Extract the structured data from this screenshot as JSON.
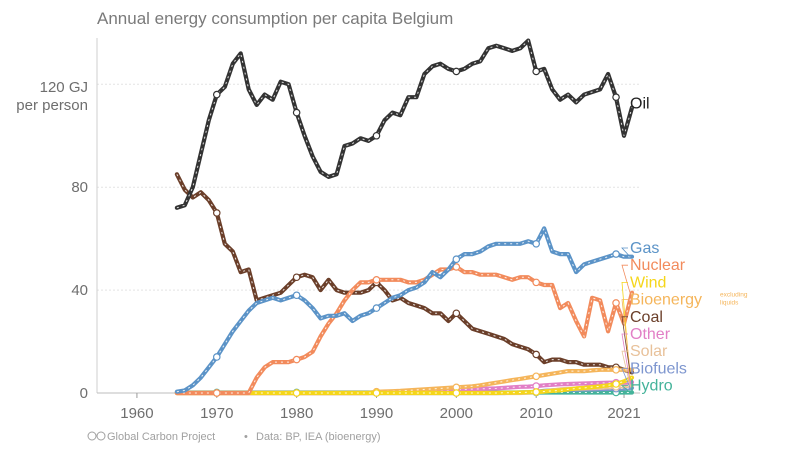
{
  "chart_data": {
    "type": "line",
    "title": "Annual energy consumption per capita Belgium",
    "ylabel": "120 GJ",
    "ylabel2": "per person",
    "xlabel": "",
    "xlim": [
      1955,
      2023
    ],
    "ylim": [
      0,
      138
    ],
    "xticks": [
      1960,
      1970,
      1980,
      1990,
      2000,
      2010,
      2021
    ],
    "yticks": [
      {
        "v": 0,
        "label": "0"
      },
      {
        "v": 40,
        "label": "40"
      },
      {
        "v": 80,
        "label": "80"
      }
    ],
    "series": [
      {
        "name": "Oil",
        "color": "#333333",
        "label_order": 0,
        "start": 1965,
        "values": [
          72,
          73,
          80,
          93,
          106,
          116,
          119,
          128,
          132,
          118,
          112,
          116,
          114,
          121,
          120,
          109,
          100,
          92,
          86,
          84,
          85,
          96,
          97,
          99,
          98,
          100,
          106,
          109,
          108,
          115,
          115,
          124,
          127,
          128,
          126,
          125,
          126,
          128,
          129,
          134,
          135,
          134,
          133,
          134,
          137,
          125,
          126,
          118,
          114,
          116,
          113,
          116,
          117,
          118,
          124,
          115,
          100,
          111
        ]
      },
      {
        "name": "Gas",
        "color": "#5b93c7",
        "label_order": 1,
        "start": 1965,
        "values": [
          0.5,
          1,
          3,
          6,
          10,
          14,
          19,
          24,
          28,
          32,
          35,
          36,
          37,
          36,
          37,
          38,
          36,
          33,
          29,
          30,
          30,
          31,
          28,
          30,
          31,
          33,
          35,
          37,
          38,
          40,
          41,
          43,
          47,
          45,
          48,
          52,
          54,
          54,
          55,
          57,
          58,
          58,
          58,
          58,
          59,
          58,
          64,
          55,
          54,
          54,
          47,
          50,
          51,
          52,
          53,
          54,
          53,
          53
        ]
      },
      {
        "name": "Nuclear",
        "color": "#f28b5c",
        "label_order": 2,
        "start": 1965,
        "values": [
          0,
          0,
          0,
          0,
          0,
          0,
          0,
          0,
          0,
          0,
          6,
          10,
          12,
          12,
          12,
          13,
          14,
          16,
          22,
          27,
          31,
          36,
          40,
          43,
          43,
          44,
          44,
          44,
          44,
          43,
          43,
          44,
          46,
          48,
          48,
          49,
          47,
          47,
          46,
          46,
          46,
          45,
          44,
          45,
          45,
          43,
          42,
          42,
          33,
          35,
          28,
          22,
          37,
          36,
          24,
          35,
          27,
          39
        ]
      },
      {
        "name": "Wind",
        "color": "#f5d61a",
        "label_order": 3,
        "start": 1965,
        "values": [
          0,
          0,
          0,
          0,
          0,
          0,
          0,
          0,
          0,
          0,
          0,
          0,
          0,
          0,
          0,
          0,
          0,
          0,
          0,
          0,
          0,
          0,
          0,
          0,
          0,
          0,
          0,
          0,
          0,
          0,
          0,
          0,
          0,
          0,
          0,
          0,
          0,
          0,
          0,
          0,
          0,
          0.1,
          0.1,
          0.2,
          0.3,
          0.4,
          0.6,
          0.8,
          1.0,
          1.4,
          1.8,
          2.0,
          2.3,
          2.6,
          3.0,
          3.5,
          4.5,
          6.0
        ]
      },
      {
        "name": "Bioenergy",
        "note": "excluding liquids",
        "color": "#f5b55a",
        "label_order": 4,
        "start": 1965,
        "values": [
          0,
          0,
          0,
          0,
          0,
          0,
          0,
          0,
          0,
          0,
          0,
          0,
          0,
          0,
          0,
          0,
          0,
          0,
          0,
          0,
          0,
          0,
          0,
          0,
          0,
          0.5,
          0.6,
          0.7,
          0.8,
          1.0,
          1.2,
          1.4,
          1.6,
          1.8,
          2.0,
          2.2,
          2.4,
          2.6,
          3.0,
          3.5,
          4.0,
          4.5,
          5.0,
          5.5,
          6.0,
          6.5,
          7.0,
          7.5,
          8.0,
          8.5,
          8.5,
          8.5,
          8.8,
          9.0,
          9.0,
          9.0,
          9.0,
          9.0
        ]
      },
      {
        "name": "Coal",
        "color": "#6b3f2a",
        "label_order": 5,
        "start": 1965,
        "values": [
          85,
          79,
          76,
          78,
          75,
          70,
          58,
          55,
          47,
          48,
          36,
          37,
          38,
          39,
          42,
          45,
          46,
          45,
          40,
          44,
          40,
          39,
          39,
          39,
          40,
          43,
          40,
          36,
          37,
          35,
          34,
          33,
          31,
          31,
          28,
          31,
          28,
          25,
          24,
          23,
          22,
          21,
          19,
          18,
          17,
          15,
          12,
          13,
          13,
          12,
          12,
          11,
          11,
          11,
          10,
          10,
          9,
          8
        ]
      },
      {
        "name": "Other",
        "color": "#e27fc6",
        "label_order": 6,
        "start": 1965,
        "values": [
          0,
          0,
          0,
          0,
          0,
          0,
          0,
          0,
          0,
          0,
          0,
          0,
          0,
          0,
          0,
          0,
          0,
          0,
          0,
          0,
          0,
          0,
          0,
          0,
          0,
          0.3,
          0.4,
          0.5,
          0.6,
          0.7,
          0.8,
          0.9,
          1.0,
          1.1,
          1.2,
          1.3,
          1.4,
          1.5,
          1.6,
          1.7,
          1.8,
          2.0,
          2.2,
          2.4,
          2.5,
          2.7,
          3.0,
          3.2,
          3.4,
          3.5,
          3.6,
          3.7,
          3.8,
          3.9,
          4.0,
          4.0,
          4.1,
          4.2
        ]
      },
      {
        "name": "Solar",
        "color": "#e8c19a",
        "label_order": 7,
        "start": 1965,
        "values": [
          0,
          0,
          0,
          0,
          0,
          0,
          0,
          0,
          0,
          0,
          0,
          0,
          0,
          0,
          0,
          0,
          0,
          0,
          0,
          0,
          0,
          0,
          0,
          0,
          0,
          0,
          0,
          0,
          0,
          0,
          0,
          0,
          0,
          0,
          0,
          0,
          0,
          0,
          0,
          0,
          0,
          0,
          0,
          0,
          0.1,
          0.3,
          0.6,
          1.0,
          1.4,
          1.6,
          1.7,
          1.8,
          1.9,
          2.0,
          2.2,
          2.4,
          2.7,
          3.0
        ]
      },
      {
        "name": "Biofuels",
        "color": "#7e96cf",
        "label_order": 8,
        "start": 1965,
        "values": [
          0,
          0,
          0,
          0,
          0,
          0,
          0,
          0,
          0,
          0,
          0,
          0,
          0,
          0,
          0,
          0,
          0,
          0,
          0,
          0,
          0,
          0,
          0,
          0,
          0,
          0,
          0,
          0,
          0,
          0,
          0,
          0,
          0,
          0,
          0,
          0,
          0,
          0,
          0,
          0,
          0,
          0,
          0.1,
          0.2,
          0.3,
          0.5,
          0.8,
          1.0,
          1.2,
          1.3,
          1.3,
          1.4,
          1.4,
          1.5,
          1.6,
          1.7,
          1.8,
          2.0
        ]
      },
      {
        "name": "Hydro",
        "color": "#44b39a",
        "label_order": 9,
        "start": 1965,
        "values": [
          0.2,
          0.2,
          0.2,
          0.2,
          0.2,
          0.2,
          0.2,
          0.2,
          0.2,
          0.2,
          0.2,
          0.2,
          0.2,
          0.2,
          0.2,
          0.2,
          0.2,
          0.2,
          0.2,
          0.2,
          0.2,
          0.2,
          0.2,
          0.2,
          0.2,
          0.2,
          0.2,
          0.2,
          0.2,
          0.2,
          0.2,
          0.2,
          0.2,
          0.2,
          0.2,
          0.2,
          0.2,
          0.2,
          0.2,
          0.2,
          0.2,
          0.2,
          0.2,
          0.2,
          0.2,
          0.2,
          0.2,
          0.2,
          0.2,
          0.2,
          0.2,
          0.2,
          0.2,
          0.2,
          0.2,
          0.2,
          0.2,
          0.2
        ]
      }
    ],
    "credit": "Global Carbon Project",
    "credit_sep": "•",
    "source": "Data: BP, IEA (bioenergy)"
  }
}
